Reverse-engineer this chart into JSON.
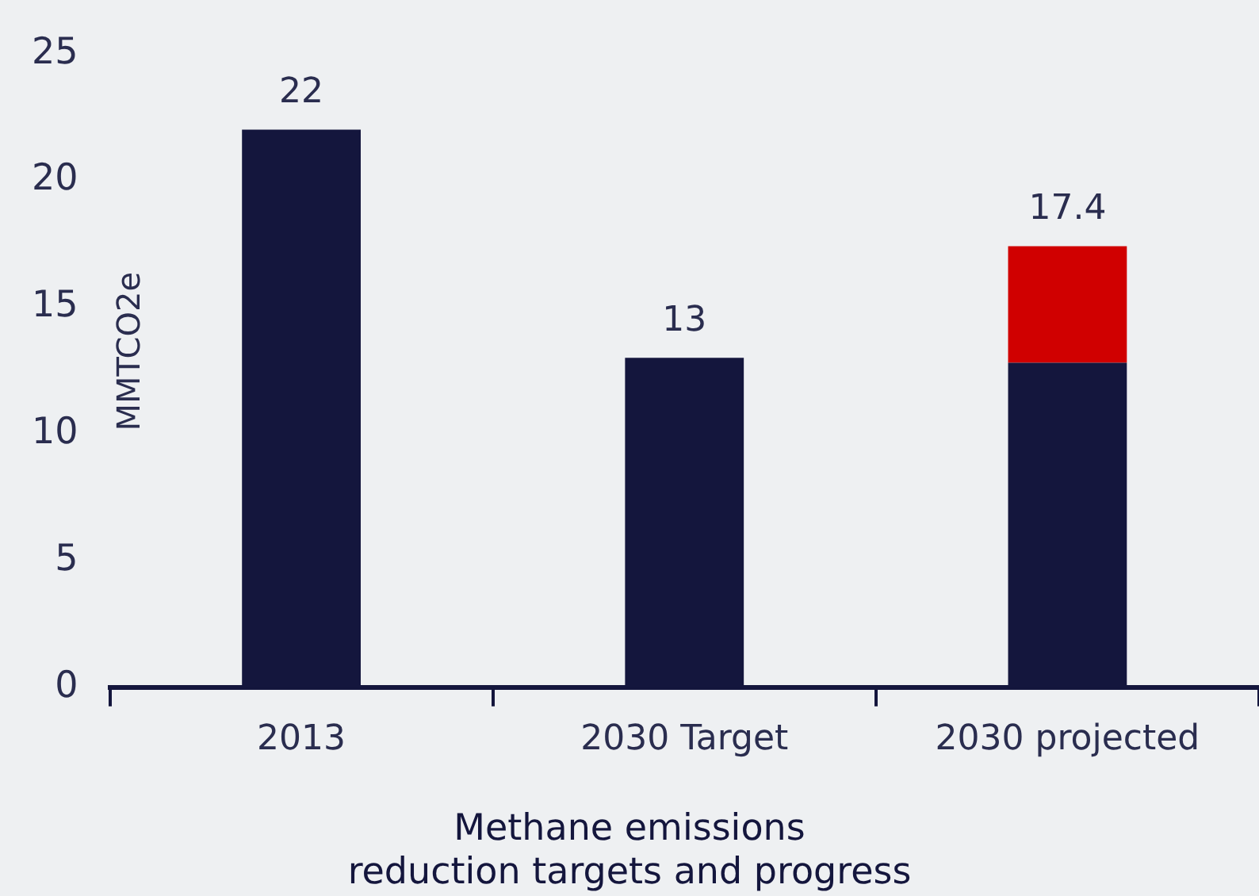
{
  "chart_data": {
    "type": "bar",
    "title": "Methane emissions\nreduction targets and progress",
    "ylabel": "MMTCO2e",
    "categories": [
      "2013",
      "2030 Target",
      "2030 projected"
    ],
    "series": [
      {
        "color": "#14163d",
        "values": [
          22,
          13,
          12.8
        ]
      },
      {
        "color": "#d00000",
        "values": [
          null,
          null,
          4.6
        ]
      }
    ],
    "stacked": true,
    "totals": [
      "22",
      "13",
      "17.4"
    ],
    "ylim": [
      0,
      25
    ],
    "yticks": [
      0,
      5,
      10,
      15,
      20,
      25
    ],
    "grid": false,
    "legend": false
  }
}
